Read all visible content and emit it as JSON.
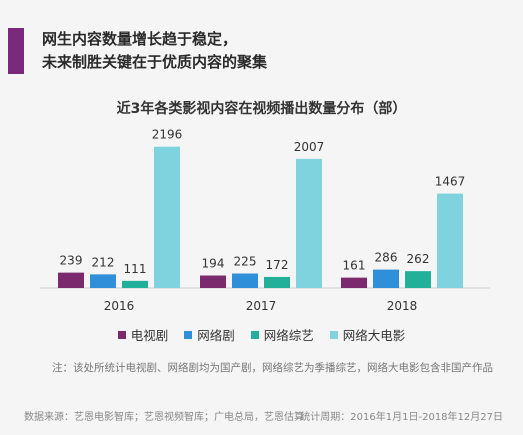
{
  "headline": {
    "line1": "网生内容数量增长趋于稳定，",
    "line2": "未来制胜关键在于优质内容的聚集",
    "accent_color": "#7a2a7d"
  },
  "note": "注：该处所统计电视剧、网络剧均为国产剧，网络综艺为季播综艺，网络大电影包含非国产作品",
  "footer": {
    "source": "数据来源：艺恩电影智库；艺恩视频智库；广电总局，艺恩估算",
    "period": "统计周期：2016年1月1日-2018年12月27日"
  },
  "chart_data": {
    "type": "bar",
    "title": "近3年各类影视内容在视频播出数量分布（部）",
    "categories": [
      "2016",
      "2017",
      "2018"
    ],
    "series": [
      {
        "name": "电视剧",
        "values": [
          239,
          194,
          161
        ],
        "color": "#7b2a6e"
      },
      {
        "name": "网络剧",
        "values": [
          212,
          225,
          286
        ],
        "color": "#2f8fd8"
      },
      {
        "name": "网络综艺",
        "values": [
          111,
          172,
          262
        ],
        "color": "#23b09a"
      },
      {
        "name": "网络大电影",
        "values": [
          2196,
          2007,
          1467
        ],
        "color": "#7fd3de"
      }
    ],
    "ylim": [
      0,
      2300
    ],
    "legend_position": "bottom",
    "grid": false
  }
}
